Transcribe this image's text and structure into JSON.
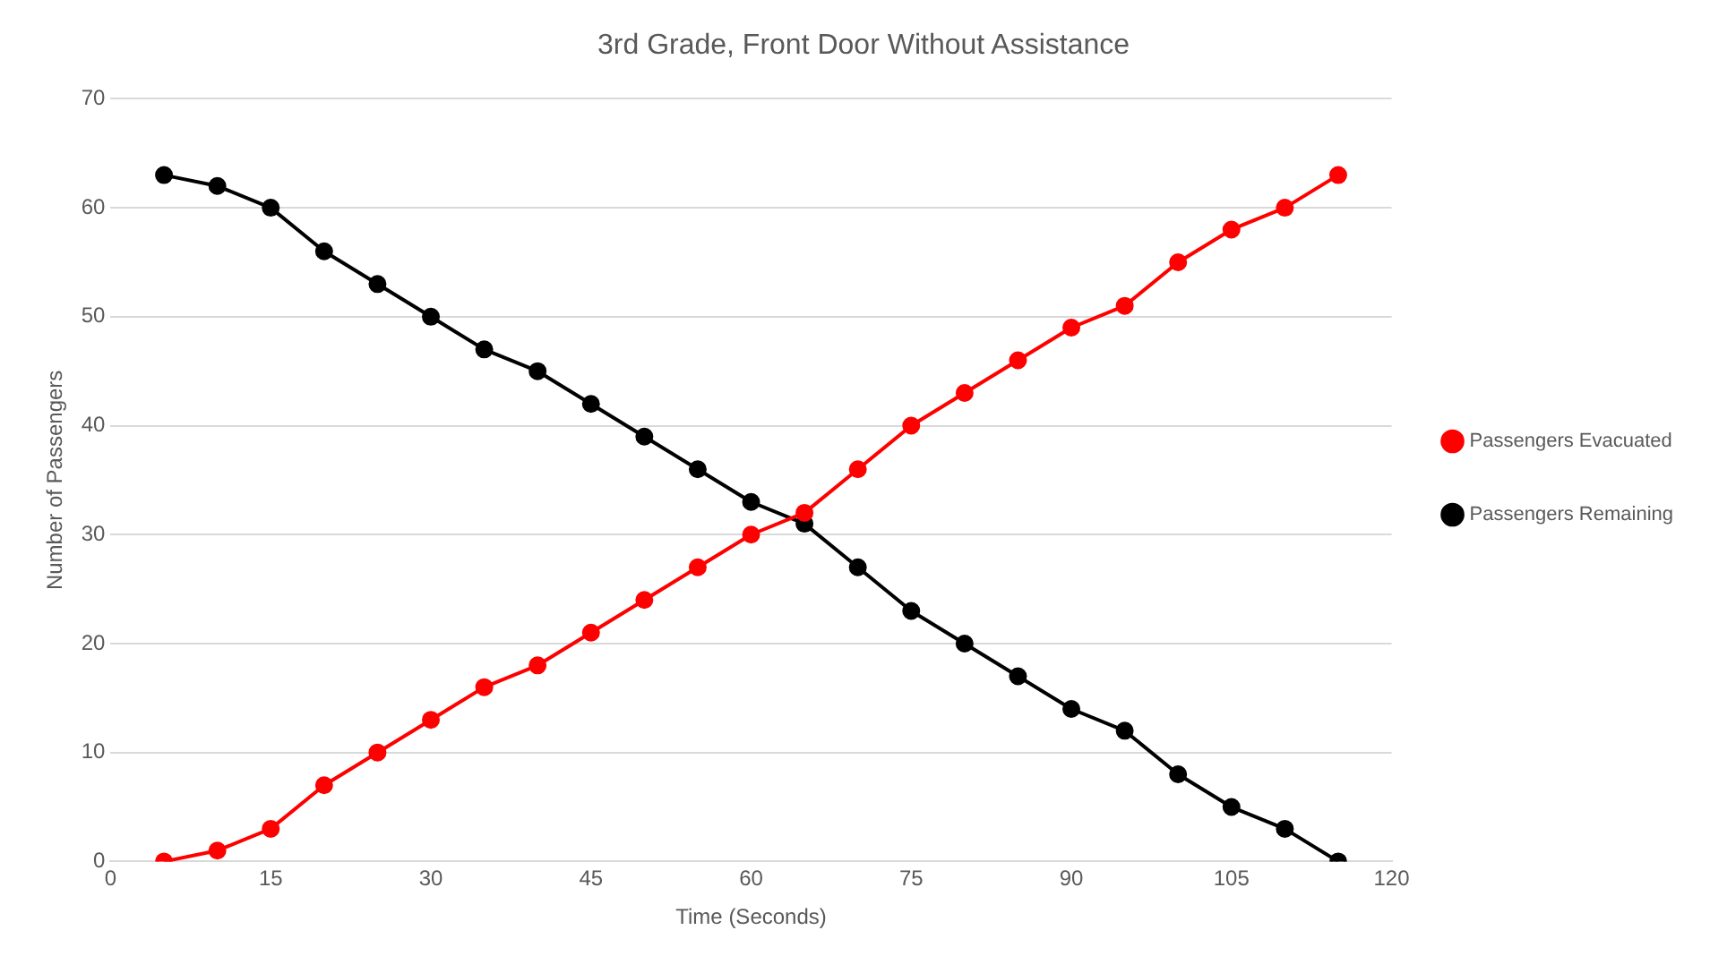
{
  "chart_data": {
    "type": "line",
    "title": "3rd Grade, Front Door Without Assistance",
    "xlabel": "Time (Seconds)",
    "ylabel": "Number of Passengers",
    "x": [
      5,
      10,
      15,
      20,
      25,
      30,
      35,
      40,
      45,
      50,
      55,
      60,
      65,
      70,
      75,
      80,
      85,
      90,
      95,
      100,
      105,
      110,
      115
    ],
    "series": [
      {
        "name": "Passengers Evacuated",
        "color": "#ff0000",
        "values": [
          0,
          1,
          3,
          7,
          10,
          13,
          16,
          18,
          21,
          24,
          27,
          30,
          32,
          36,
          40,
          43,
          46,
          49,
          51,
          55,
          58,
          60,
          63
        ]
      },
      {
        "name": "Passengers Remaining",
        "color": "#000000",
        "values": [
          63,
          62,
          60,
          56,
          53,
          50,
          47,
          45,
          42,
          39,
          36,
          33,
          31,
          27,
          23,
          20,
          17,
          14,
          12,
          8,
          5,
          3,
          0
        ]
      }
    ],
    "xlim": [
      0,
      120
    ],
    "xticks": [
      0,
      15,
      30,
      45,
      60,
      75,
      90,
      105,
      120
    ],
    "ylim": [
      0,
      70
    ],
    "yticks": [
      0,
      10,
      20,
      30,
      40,
      50,
      60,
      70
    ],
    "grid": "y",
    "legend": "right",
    "marker": "circle",
    "line_style": "solid"
  }
}
